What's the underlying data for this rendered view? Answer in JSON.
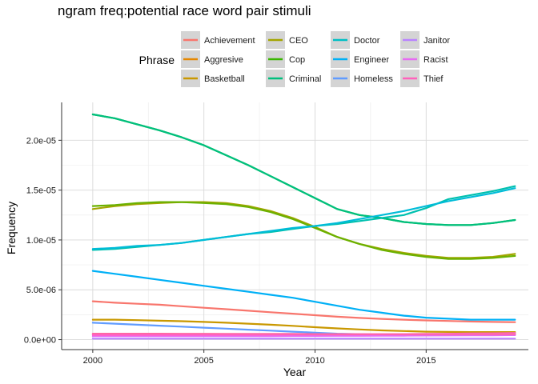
{
  "chart_data": {
    "type": "line",
    "title": "ngram freq:potential race word pair stimuli",
    "xlabel": "Year",
    "ylabel": "Frequency",
    "xlim": [
      1998.6,
      2019.6
    ],
    "ylim": [
      -1e-06,
      2.38e-05
    ],
    "x_ticks": [
      2000,
      2005,
      2010,
      2015
    ],
    "x_tick_labels": [
      "2000",
      "2005",
      "2010",
      "2015"
    ],
    "y_ticks": [
      0,
      5e-06,
      1e-05,
      1.5e-05,
      2e-05
    ],
    "y_tick_labels": [
      "0.0e+00",
      "5.0e-06",
      "1.0e-05",
      "1.5e-05",
      "2.0e-05"
    ],
    "grid": true,
    "legend": {
      "title": "Phrase",
      "position": "top",
      "ncol": 4
    },
    "x": [
      2000,
      2001,
      2002,
      2003,
      2004,
      2005,
      2006,
      2007,
      2008,
      2009,
      2010,
      2011,
      2012,
      2013,
      2014,
      2015,
      2016,
      2017,
      2018,
      2019
    ],
    "series": [
      {
        "name": "Achievement",
        "color": "#F8766D",
        "values": [
          3.85e-06,
          3.7e-06,
          3.6e-06,
          3.5e-06,
          3.35e-06,
          3.2e-06,
          3.05e-06,
          2.9e-06,
          2.75e-06,
          2.6e-06,
          2.45e-06,
          2.3e-06,
          2.18e-06,
          2.08e-06,
          2e-06,
          1.93e-06,
          1.87e-06,
          1.82e-06,
          1.78e-06,
          1.75e-06
        ]
      },
      {
        "name": "Aggresive",
        "color": "#E58700",
        "values": [
          5.5e-07,
          5.5e-07,
          5.5e-07,
          5.4e-07,
          5.4e-07,
          5.4e-07,
          5.3e-07,
          5.3e-07,
          5.3e-07,
          5.2e-07,
          5.2e-07,
          5.2e-07,
          5.2e-07,
          5.2e-07,
          5.2e-07,
          5.2e-07,
          5.2e-07,
          5.3e-07,
          5.3e-07,
          5.3e-07
        ]
      },
      {
        "name": "Basketball",
        "color": "#C99800",
        "values": [
          2e-06,
          2e-06,
          1.95e-06,
          1.9e-06,
          1.85e-06,
          1.78e-06,
          1.7e-06,
          1.6e-06,
          1.5e-06,
          1.38e-06,
          1.25e-06,
          1.13e-06,
          1.02e-06,
          9.3e-07,
          8.6e-07,
          8e-07,
          7.7e-07,
          7.6e-07,
          7.6e-07,
          7.6e-07
        ]
      },
      {
        "name": "CEO",
        "color": "#A3A500",
        "values": [
          1.31e-05,
          1.34e-05,
          1.36e-05,
          1.37e-05,
          1.38e-05,
          1.38e-05,
          1.37e-05,
          1.34e-05,
          1.29e-05,
          1.22e-05,
          1.13e-05,
          1.03e-05,
          9.6e-06,
          9.1e-06,
          8.7e-06,
          8.4e-06,
          8.2e-06,
          8.2e-06,
          8.3e-06,
          8.6e-06
        ]
      },
      {
        "name": "Cop",
        "color": "#6BB100",
        "values": [
          1.34e-05,
          1.35e-05,
          1.37e-05,
          1.38e-05,
          1.38e-05,
          1.37e-05,
          1.36e-05,
          1.33e-05,
          1.28e-05,
          1.21e-05,
          1.12e-05,
          1.03e-05,
          9.6e-06,
          9e-06,
          8.6e-06,
          8.3e-06,
          8.1e-06,
          8.1e-06,
          8.2e-06,
          8.4e-06
        ]
      },
      {
        "name": "Criminal",
        "color": "#00BA38",
        "values": [
          2.26e-05,
          2.22e-05,
          2.16e-05,
          2.1e-05,
          2.03e-05,
          1.95e-05,
          1.85e-05,
          1.75e-05,
          1.64e-05,
          1.53e-05,
          1.42e-05,
          1.31e-05,
          1.25e-05,
          1.22e-05,
          1.18e-05,
          1.16e-05,
          1.15e-05,
          1.15e-05,
          1.17e-05,
          1.2e-05
        ]
      },
      {
        "name": "Criminal",
        "color": "#00BF7D",
        "values": [
          2.26e-05,
          2.22e-05,
          2.16e-05,
          2.1e-05,
          2.03e-05,
          1.95e-05,
          1.85e-05,
          1.75e-05,
          1.64e-05,
          1.53e-05,
          1.42e-05,
          1.31e-05,
          1.25e-05,
          1.22e-05,
          1.18e-05,
          1.16e-05,
          1.15e-05,
          1.15e-05,
          1.17e-05,
          1.2e-05
        ]
      },
      {
        "name": "Doctor",
        "color": "#00C0AF",
        "values": [
          9e-06,
          9.1e-06,
          9.3e-06,
          9.5e-06,
          9.7e-06,
          1e-05,
          1.03e-05,
          1.06e-05,
          1.08e-05,
          1.11e-05,
          1.14e-05,
          1.16e-05,
          1.19e-05,
          1.22e-05,
          1.25e-05,
          1.32e-05,
          1.41e-05,
          1.45e-05,
          1.49e-05,
          1.54e-05
        ]
      },
      {
        "name": "Doctor",
        "color": "#00BCD8",
        "values": [
          9.1e-06,
          9.2e-06,
          9.4e-06,
          9.5e-06,
          9.7e-06,
          1e-05,
          1.03e-05,
          1.06e-05,
          1.09e-05,
          1.12e-05,
          1.14e-05,
          1.17e-05,
          1.21e-05,
          1.25e-05,
          1.29e-05,
          1.34e-05,
          1.39e-05,
          1.43e-05,
          1.47e-05,
          1.52e-05
        ]
      },
      {
        "name": "Engineer",
        "color": "#00B0F6",
        "values": [
          6.9e-06,
          6.6e-06,
          6.3e-06,
          6e-06,
          5.7e-06,
          5.4e-06,
          5.1e-06,
          4.8e-06,
          4.5e-06,
          4.2e-06,
          3.8e-06,
          3.4e-06,
          3e-06,
          2.7e-06,
          2.4e-06,
          2.2e-06,
          2.1e-06,
          2e-06,
          2e-06,
          2e-06
        ]
      },
      {
        "name": "Homeless",
        "color": "#619CFF",
        "values": [
          1.7e-06,
          1.6e-06,
          1.5e-06,
          1.4e-06,
          1.3e-06,
          1.2e-06,
          1.1e-06,
          1e-06,
          9e-07,
          8e-07,
          7e-07,
          6e-07,
          5.5e-07,
          5e-07,
          5e-07,
          5e-07,
          5e-07,
          5e-07,
          5e-07,
          5e-07
        ]
      },
      {
        "name": "Janitor",
        "color": "#B983FF",
        "values": [
          1e-07,
          1e-07,
          1e-07,
          1e-07,
          1e-07,
          1e-07,
          1e-07,
          1e-07,
          1e-07,
          1e-07,
          1e-07,
          1e-07,
          1e-07,
          1e-07,
          1e-07,
          1e-07,
          1e-07,
          1e-07,
          1e-07,
          1e-07
        ]
      },
      {
        "name": "Janitor",
        "color": "#E76BF3",
        "values": [
          3.5e-07,
          3.5e-07,
          3.5e-07,
          3.5e-07,
          3.5e-07,
          3.5e-07,
          3.6e-07,
          3.6e-07,
          3.6e-07,
          3.7e-07,
          3.7e-07,
          3.8e-07,
          3.8e-07,
          3.9e-07,
          4e-07,
          4.1e-07,
          4.2e-07,
          4.3e-07,
          4.4e-07,
          4.5e-07
        ]
      },
      {
        "name": "Racist",
        "color": "#FD61D1",
        "values": [
          4.5e-07,
          4.5e-07,
          4.5e-07,
          4.6e-07,
          4.6e-07,
          4.7e-07,
          4.7e-07,
          4.8e-07,
          4.9e-07,
          5e-07,
          5.1e-07,
          5.2e-07,
          5.3e-07,
          5.4e-07,
          5.5e-07,
          5.7e-07,
          5.9e-07,
          6.1e-07,
          6.3e-07,
          6.5e-07
        ]
      },
      {
        "name": "Thief",
        "color": "#FF67A4",
        "values": [
          6e-07,
          6e-07,
          6e-07,
          6e-07,
          5.9e-07,
          5.9e-07,
          5.8e-07,
          5.8e-07,
          5.7e-07,
          5.7e-07,
          5.6e-07,
          5.6e-07,
          5.5e-07,
          5.5e-07,
          5.5e-07,
          5.5e-07,
          5.5e-07,
          5.5e-07,
          5.5e-07,
          5.5e-07
        ]
      }
    ],
    "legend_entries": [
      {
        "label": "Achievement",
        "color": "#F8766D"
      },
      {
        "label": "Aggresive",
        "color": "#E58700"
      },
      {
        "label": "Basketball",
        "color": "#C99800"
      },
      {
        "label": "CEO",
        "color": "#A3A500"
      },
      {
        "label": "Cop",
        "color": "#39B600"
      },
      {
        "label": "Criminal",
        "color": "#00BF7D"
      },
      {
        "label": "Doctor",
        "color": "#00BFC4"
      },
      {
        "label": "Engineer",
        "color": "#00B0F6"
      },
      {
        "label": "Homeless",
        "color": "#619CFF"
      },
      {
        "label": "Janitor",
        "color": "#B983FF"
      },
      {
        "label": "Racist",
        "color": "#E76BF3"
      },
      {
        "label": "Thief",
        "color": "#FF62BC"
      }
    ]
  }
}
